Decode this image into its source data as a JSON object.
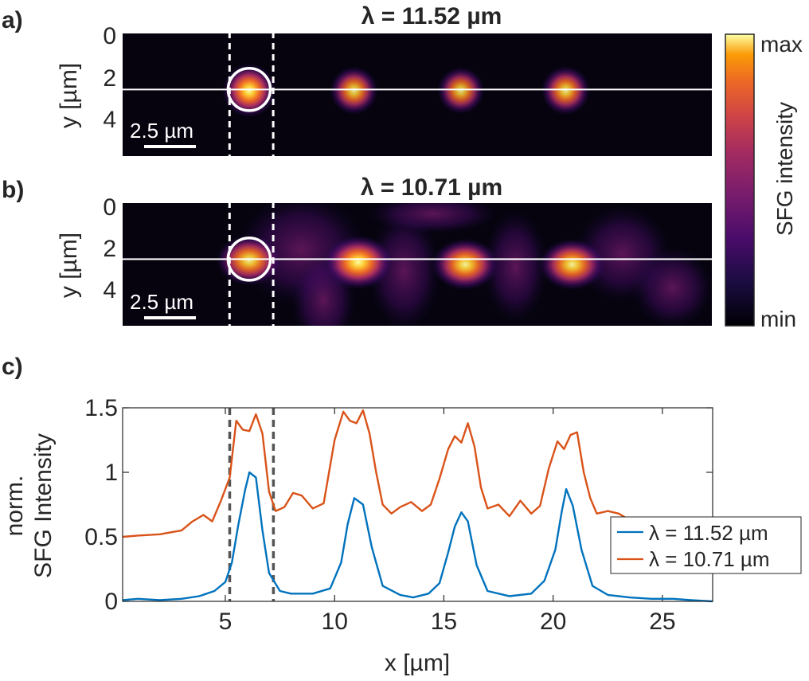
{
  "panels": {
    "a": {
      "letter": "a)",
      "title": "λ = 11.52 µm",
      "ylabel": "y [µm]",
      "yticks": [
        "0",
        "2",
        "4"
      ],
      "scalebar": "2.5 µm"
    },
    "b": {
      "letter": "b)",
      "title": "λ = 10.71 µm",
      "ylabel": "y [µm]",
      "yticks": [
        "0",
        "2",
        "4"
      ],
      "scalebar": "2.5 µm"
    },
    "c": {
      "letter": "c)"
    }
  },
  "colorbar": {
    "label": "SFG intensity",
    "max_label": "max",
    "min_label": "min"
  },
  "chart_data": [
    {
      "type": "heatmap",
      "panel": "a",
      "title": "λ = 11.52 µm",
      "ylabel": "y [µm]",
      "x_range": [
        0.3,
        27.3
      ],
      "y_range": [
        0,
        5.8
      ],
      "line_y": 2.65,
      "circle": {
        "x": 6.1,
        "y": 2.65,
        "r": 1.0
      },
      "spots": [
        {
          "x": 6.1,
          "y": 2.7,
          "intensity": 1.0
        },
        {
          "x": 10.9,
          "y": 2.7,
          "intensity": 0.75
        },
        {
          "x": 15.8,
          "y": 2.7,
          "intensity": 0.7
        },
        {
          "x": 20.6,
          "y": 2.7,
          "intensity": 0.78
        }
      ],
      "dashed_x": [
        5.2,
        7.2
      ]
    },
    {
      "type": "heatmap",
      "panel": "b",
      "title": "λ = 10.71 µm",
      "ylabel": "y [µm]",
      "x_range": [
        0.3,
        27.3
      ],
      "y_range": [
        0,
        5.8
      ],
      "line_y": 2.65,
      "circle": {
        "x": 6.1,
        "y": 2.65,
        "r": 1.0
      },
      "spots": [
        {
          "x": 6.1,
          "y": 2.7,
          "intensity": 0.85
        },
        {
          "x": 11.1,
          "y": 2.8,
          "intensity": 1.0
        },
        {
          "x": 16.0,
          "y": 2.9,
          "intensity": 0.9
        },
        {
          "x": 20.9,
          "y": 2.9,
          "intensity": 0.88
        }
      ],
      "dashed_x": [
        5.2,
        7.2
      ]
    },
    {
      "type": "line",
      "panel": "c",
      "xlabel": "x [µm]",
      "ylabel_line1": "norm.",
      "ylabel_line2": "SFG Intensity",
      "xlim": [
        0.3,
        27.3
      ],
      "ylim": [
        0,
        1.5
      ],
      "xticks": [
        5,
        10,
        15,
        20,
        25
      ],
      "yticks": [
        0,
        0.5,
        1,
        1.5
      ],
      "ytick_labels": [
        "0",
        "0.5",
        "1",
        "1.5"
      ],
      "dashed_x": [
        5.2,
        7.2
      ],
      "legend_position": "middle-right",
      "series": [
        {
          "name": "λ = 11.52 µm",
          "color": "#0072BD",
          "x": [
            0.3,
            1.0,
            2.0,
            3.0,
            3.8,
            4.5,
            5.0,
            5.3,
            5.6,
            5.9,
            6.1,
            6.4,
            6.7,
            7.0,
            7.5,
            8.0,
            9.0,
            9.8,
            10.3,
            10.6,
            10.9,
            11.3,
            11.7,
            12.2,
            13.0,
            13.6,
            14.3,
            14.8,
            15.2,
            15.5,
            15.8,
            16.1,
            16.5,
            17.0,
            18.0,
            19.0,
            19.6,
            20.1,
            20.4,
            20.6,
            20.9,
            21.3,
            21.8,
            22.5,
            23.5,
            24.5,
            25.5,
            26.3,
            27.3
          ],
          "y": [
            0.01,
            0.02,
            0.01,
            0.02,
            0.04,
            0.08,
            0.15,
            0.3,
            0.6,
            0.86,
            1.0,
            0.96,
            0.55,
            0.22,
            0.08,
            0.06,
            0.06,
            0.1,
            0.3,
            0.6,
            0.8,
            0.75,
            0.42,
            0.12,
            0.05,
            0.03,
            0.06,
            0.14,
            0.38,
            0.58,
            0.69,
            0.62,
            0.28,
            0.08,
            0.04,
            0.06,
            0.16,
            0.4,
            0.7,
            0.87,
            0.74,
            0.4,
            0.12,
            0.05,
            0.03,
            0.02,
            0.02,
            0.01,
            0.0
          ]
        },
        {
          "name": "λ = 10.71 µm",
          "color": "#D95319",
          "x": [
            0.3,
            1.0,
            2.0,
            3.0,
            3.5,
            4.0,
            4.4,
            4.8,
            5.2,
            5.5,
            5.8,
            6.1,
            6.4,
            6.7,
            7.0,
            7.3,
            7.7,
            8.1,
            8.5,
            9.0,
            9.5,
            10.0,
            10.4,
            10.7,
            11.0,
            11.3,
            11.6,
            11.9,
            12.2,
            12.6,
            13.0,
            13.5,
            14.0,
            14.4,
            14.8,
            15.2,
            15.5,
            15.8,
            16.1,
            16.4,
            16.7,
            17.0,
            17.5,
            18.0,
            18.5,
            19.0,
            19.4,
            19.8,
            20.2,
            20.5,
            20.8,
            21.1,
            21.4,
            21.7,
            22.0,
            22.5,
            23.0,
            23.5
          ],
          "y": [
            0.5,
            0.51,
            0.52,
            0.55,
            0.62,
            0.67,
            0.62,
            0.78,
            0.96,
            1.4,
            1.33,
            1.32,
            1.45,
            1.3,
            0.85,
            0.7,
            0.73,
            0.84,
            0.82,
            0.72,
            0.76,
            1.25,
            1.47,
            1.4,
            1.38,
            1.48,
            1.3,
            1.0,
            0.75,
            0.68,
            0.73,
            0.77,
            0.7,
            0.75,
            0.95,
            1.18,
            1.28,
            1.23,
            1.38,
            1.2,
            0.88,
            0.72,
            0.75,
            0.66,
            0.78,
            0.68,
            0.74,
            1.03,
            1.24,
            1.18,
            1.29,
            1.31,
            1.0,
            0.8,
            0.68,
            0.7,
            0.68,
            0.63
          ]
        }
      ]
    }
  ]
}
